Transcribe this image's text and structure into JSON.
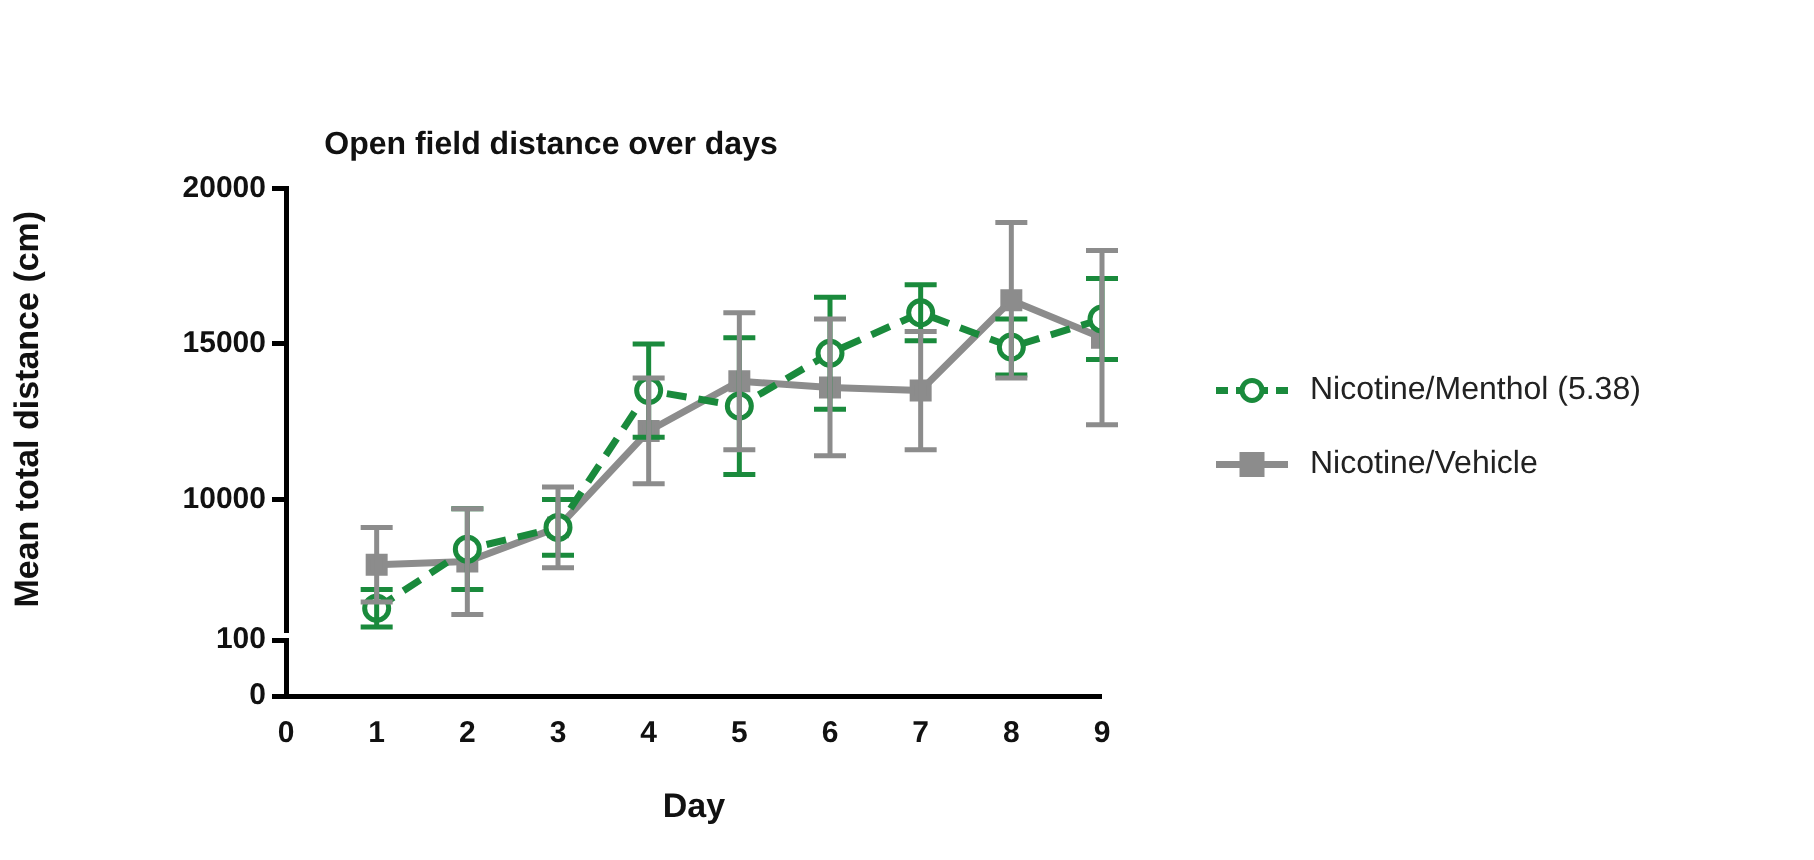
{
  "chart_data": [
    {
      "type": "line",
      "title": "Open field distance over days",
      "ylabel": "Mean total distance (cm)",
      "x": [
        1,
        2,
        3,
        4,
        5,
        6,
        7,
        8,
        9
      ],
      "xlim": [
        0,
        9
      ],
      "xticks": [
        0,
        1,
        2,
        3,
        4,
        5,
        6,
        7,
        8,
        9
      ],
      "ylim": [
        5800,
        20000
      ],
      "yticks": [
        10000,
        15000,
        20000
      ],
      "tick_labels": "y",
      "grid": false,
      "legend": "right",
      "series": [
        {
          "name": "Nicotine/Menthol (5.38)",
          "color": "#1a8a3c",
          "marker": "circle",
          "line_style": "dashed",
          "values": [
            6500,
            8400,
            9100,
            13500,
            13000,
            14700,
            16000,
            14900,
            15800
          ],
          "errors": [
            600,
            1300,
            900,
            1500,
            2200,
            1800,
            900,
            900,
            1300
          ]
        },
        {
          "name": "Nicotine/Vehicle",
          "color": "#8c8c8c",
          "marker": "square",
          "line_style": "solid",
          "values": [
            7900,
            8000,
            9100,
            12200,
            13800,
            13600,
            13500,
            16400,
            15200
          ],
          "errors": [
            1200,
            1700,
            1300,
            1700,
            2200,
            2200,
            1900,
            2500,
            2800
          ]
        }
      ]
    },
    {
      "type": "line",
      "xlabel": "Day",
      "xlim": [
        0,
        9
      ],
      "xticks": [
        0,
        1,
        2,
        3,
        4,
        5,
        6,
        7,
        8,
        9
      ],
      "ylim": [
        0,
        100
      ],
      "yticks": [
        0,
        100
      ],
      "grid": false
    }
  ]
}
